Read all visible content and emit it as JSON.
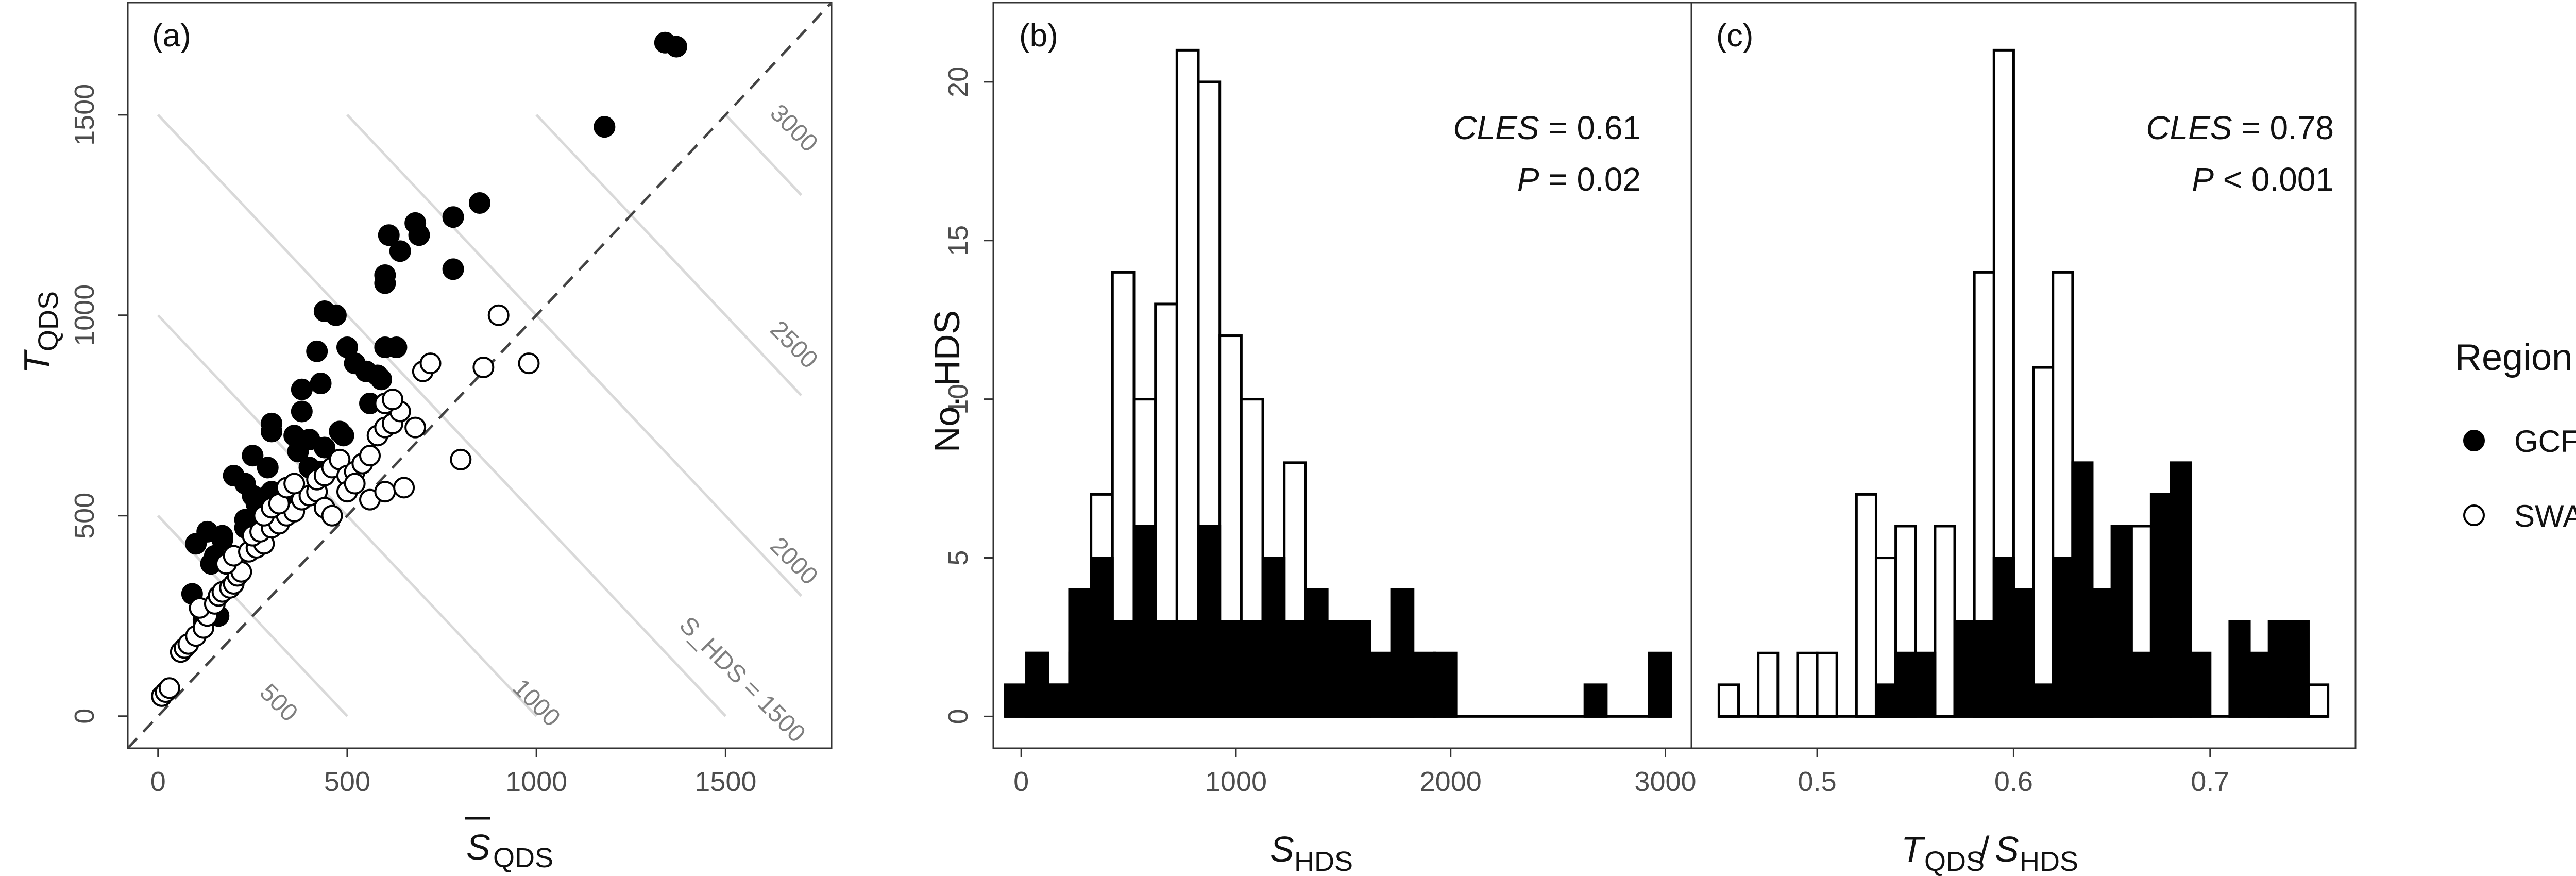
{
  "legend": {
    "title": "Region",
    "items": [
      {
        "label": "GCFR",
        "marker": "filled"
      },
      {
        "label": "SWAFR",
        "marker": "open"
      }
    ]
  },
  "colors": {
    "gcfr": "#000000",
    "swafr": "#ffffff",
    "isoline": "#d9d9d9",
    "text": "#111111"
  },
  "chart_data": [
    {
      "type": "scatter",
      "panel_label": "(a)",
      "xlabel": "S̄_QDS",
      "ylabel": "T_QDS",
      "xlim": [
        -80,
        1780
      ],
      "ylim": [
        -80,
        1780
      ],
      "x_ticks": [
        0,
        500,
        1000,
        1500
      ],
      "y_ticks": [
        0,
        500,
        1000,
        1500
      ],
      "grid": false,
      "diagonal_reference": "y = x (dashed)",
      "isolines": [
        {
          "S_HDS": 500,
          "label": "500"
        },
        {
          "S_HDS": 1000,
          "label": "1000"
        },
        {
          "S_HDS": 1500,
          "label": "S_HDS = 1500"
        },
        {
          "S_HDS": 2000,
          "label": "2000"
        },
        {
          "S_HDS": 2500,
          "label": "2500"
        },
        {
          "S_HDS": 3000,
          "label": "3000"
        }
      ],
      "series": [
        {
          "name": "GCFR",
          "points": [
            [
              1340,
              1680
            ],
            [
              1370,
              1670
            ],
            [
              1180,
              1470
            ],
            [
              850,
              1280
            ],
            [
              780,
              1245
            ],
            [
              680,
              1230
            ],
            [
              690,
              1200
            ],
            [
              610,
              1200
            ],
            [
              640,
              1160
            ],
            [
              600,
              1100
            ],
            [
              600,
              1080
            ],
            [
              780,
              1115
            ],
            [
              440,
              1010
            ],
            [
              470,
              1000
            ],
            [
              500,
              920
            ],
            [
              420,
              910
            ],
            [
              600,
              920
            ],
            [
              630,
              920
            ],
            [
              520,
              880
            ],
            [
              550,
              860
            ],
            [
              580,
              850
            ],
            [
              590,
              840
            ],
            [
              430,
              830
            ],
            [
              380,
              815
            ],
            [
              300,
              730
            ],
            [
              300,
              710
            ],
            [
              380,
              760
            ],
            [
              560,
              780
            ],
            [
              360,
              700
            ],
            [
              400,
              690
            ],
            [
              480,
              710
            ],
            [
              440,
              670
            ],
            [
              490,
              700
            ],
            [
              370,
              660
            ],
            [
              250,
              650
            ],
            [
              290,
              620
            ],
            [
              200,
              600
            ],
            [
              230,
              580
            ],
            [
              300,
              560
            ],
            [
              350,
              560
            ],
            [
              250,
              550
            ],
            [
              290,
              550
            ],
            [
              260,
              530
            ],
            [
              400,
              620
            ],
            [
              430,
              610
            ],
            [
              230,
              490
            ],
            [
              230,
              470
            ],
            [
              130,
              460
            ],
            [
              170,
              450
            ],
            [
              170,
              440
            ],
            [
              100,
              430
            ],
            [
              150,
              400
            ],
            [
              140,
              380
            ],
            [
              90,
              305
            ],
            [
              160,
              250
            ],
            [
              120,
              240
            ]
          ]
        },
        {
          "name": "SWAFR",
          "points": [
            [
              10,
              50
            ],
            [
              20,
              60
            ],
            [
              30,
              70
            ],
            [
              60,
              160
            ],
            [
              70,
              170
            ],
            [
              80,
              180
            ],
            [
              100,
              200
            ],
            [
              120,
              220
            ],
            [
              130,
              250
            ],
            [
              110,
              270
            ],
            [
              150,
              280
            ],
            [
              160,
              300
            ],
            [
              170,
              310
            ],
            [
              190,
              320
            ],
            [
              200,
              330
            ],
            [
              210,
              350
            ],
            [
              220,
              360
            ],
            [
              180,
              380
            ],
            [
              200,
              400
            ],
            [
              240,
              410
            ],
            [
              260,
              420
            ],
            [
              280,
              430
            ],
            [
              250,
              450
            ],
            [
              270,
              460
            ],
            [
              300,
              470
            ],
            [
              320,
              480
            ],
            [
              280,
              500
            ],
            [
              340,
              500
            ],
            [
              360,
              510
            ],
            [
              300,
              520
            ],
            [
              320,
              530
            ],
            [
              380,
              540
            ],
            [
              400,
              550
            ],
            [
              420,
              560
            ],
            [
              340,
              570
            ],
            [
              360,
              580
            ],
            [
              420,
              590
            ],
            [
              440,
              600
            ],
            [
              460,
              620
            ],
            [
              480,
              640
            ],
            [
              500,
              600
            ],
            [
              520,
              610
            ],
            [
              540,
              630
            ],
            [
              560,
              650
            ],
            [
              580,
              700
            ],
            [
              600,
              720
            ],
            [
              620,
              730
            ],
            [
              640,
              760
            ],
            [
              600,
              780
            ],
            [
              620,
              790
            ],
            [
              500,
              560
            ],
            [
              520,
              580
            ],
            [
              560,
              540
            ],
            [
              600,
              560
            ],
            [
              650,
              570
            ],
            [
              680,
              720
            ],
            [
              700,
              860
            ],
            [
              720,
              880
            ],
            [
              800,
              640
            ],
            [
              860,
              870
            ],
            [
              900,
              1000
            ],
            [
              980,
              880
            ],
            [
              440,
              520
            ],
            [
              460,
              500
            ]
          ]
        }
      ]
    },
    {
      "type": "bar",
      "panel_label": "(b)",
      "xlabel": "S_HDS",
      "ylabel": "No. HDS",
      "xlim": [
        -130,
        3150
      ],
      "ylim": [
        -1,
        22.5
      ],
      "x_ticks": [
        0,
        1000,
        2000,
        3000
      ],
      "y_ticks": [
        0,
        5,
        10,
        15,
        20
      ],
      "bin_width": 100,
      "annotations": [
        {
          "label": "CLES",
          "value": "= 0.61"
        },
        {
          "label": "P",
          "value": "= 0.02"
        }
      ],
      "x": [
        -25,
        75,
        175,
        275,
        375,
        475,
        575,
        675,
        775,
        875,
        975,
        1075,
        1175,
        1275,
        1375,
        1475,
        1575,
        1675,
        1775,
        1875,
        1975,
        2075,
        2175,
        2275,
        2375,
        2475,
        2575,
        2675,
        2775,
        2875,
        2975
      ],
      "series": [
        {
          "name": "GCFR",
          "values": [
            1,
            2,
            1,
            4,
            5,
            3,
            6,
            3,
            3,
            6,
            3,
            3,
            5,
            3,
            4,
            3,
            3,
            2,
            4,
            2,
            2,
            0,
            0,
            0,
            0,
            0,
            0,
            1,
            0,
            0,
            2
          ]
        },
        {
          "name": "SWAFR",
          "values": [
            0,
            2,
            1,
            2,
            7,
            14,
            10,
            13,
            21,
            20,
            12,
            10,
            5,
            8,
            4,
            3,
            1,
            0,
            1,
            0,
            0,
            0,
            0,
            0,
            0,
            0,
            0,
            0,
            0,
            0,
            0
          ]
        }
      ]
    },
    {
      "type": "bar",
      "panel_label": "(c)",
      "xlabel": "T_QDS / S_HDS",
      "ylabel": "",
      "xlim": [
        0.436,
        0.774
      ],
      "ylim": [
        -1,
        22.5
      ],
      "x_ticks": [
        0.5,
        0.6,
        0.7
      ],
      "y_ticks": [
        0,
        5,
        10,
        15,
        20
      ],
      "bin_width": 0.01,
      "annotations": [
        {
          "label": "CLES",
          "value": "= 0.78"
        },
        {
          "label": "P",
          "value": "< 0.001"
        }
      ],
      "x": [
        0.455,
        0.465,
        0.475,
        0.485,
        0.495,
        0.505,
        0.515,
        0.525,
        0.535,
        0.545,
        0.555,
        0.565,
        0.575,
        0.585,
        0.595,
        0.605,
        0.615,
        0.625,
        0.635,
        0.645,
        0.655,
        0.665,
        0.675,
        0.685,
        0.695,
        0.705,
        0.715,
        0.725,
        0.735,
        0.745,
        0.755
      ],
      "series": [
        {
          "name": "GCFR",
          "values": [
            0,
            0,
            0,
            0,
            0,
            0,
            0,
            0,
            1,
            2,
            2,
            0,
            3,
            3,
            5,
            4,
            1,
            5,
            8,
            4,
            6,
            2,
            7,
            8,
            2,
            0,
            3,
            2,
            3,
            3,
            0
          ]
        },
        {
          "name": "SWAFR",
          "values": [
            1,
            0,
            2,
            0,
            2,
            2,
            0,
            7,
            5,
            6,
            0,
            6,
            0,
            14,
            21,
            3,
            11,
            14,
            4,
            0,
            1,
            6,
            0,
            0,
            0,
            0,
            0,
            0,
            0,
            0,
            1
          ]
        }
      ]
    }
  ]
}
